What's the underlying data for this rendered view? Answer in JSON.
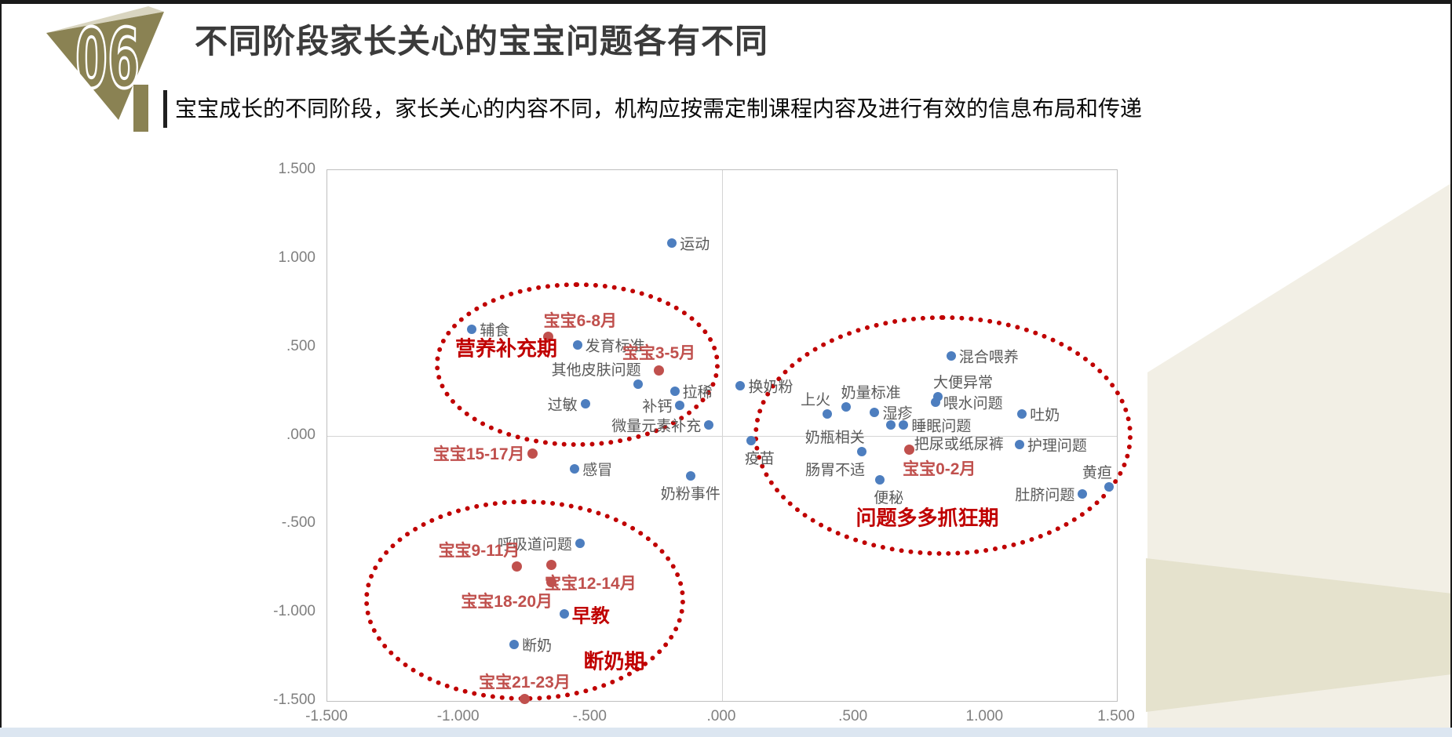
{
  "slide": {
    "badge_number": "06",
    "title": "不同阶段家长关心的宝宝问题各有不同",
    "subtitle": "宝宝成长的不同阶段，家长关心的内容不同，机构应按需定制课程内容及进行有效的信息布局和传递",
    "colors": {
      "accent_olive": "#8a8253",
      "accent_olive_light": "#d9d5c0",
      "corner_cream": "#f2efe5",
      "corner_band": "#e5e2cd",
      "bottom_strip_blue": "#dce6f1",
      "title_gray": "#3b3b3b",
      "topic_blue": "#4d7ebf",
      "stage_red": "#c0504d",
      "cluster_red": "#c00000",
      "label_gray": "#595959",
      "axis_gray": "#7f7f7f"
    }
  },
  "chart_data": {
    "type": "scatter",
    "title": "",
    "xlabel": "",
    "ylabel": "",
    "xlim": [
      -1.5,
      1.5
    ],
    "ylim": [
      -1.5,
      1.5
    ],
    "grid": "zero axis lines only",
    "legend": "none",
    "x_tick_labels": [
      "-1.500",
      "-1.000",
      "-.500",
      ".000",
      ".500",
      "1.000",
      "1.500"
    ],
    "y_tick_labels": [
      "1.500",
      "1.000",
      ".500",
      ".000",
      "-.500",
      "-1.000",
      "-1.500"
    ],
    "series": [
      {
        "name": "topics_blue",
        "color": "#4d7ebf",
        "points": [
          {
            "label": "运动",
            "x": -0.19,
            "y": 1.09,
            "side": "right"
          },
          {
            "label": "辅食",
            "x": -0.95,
            "y": 0.6,
            "side": "right"
          },
          {
            "label": "发育标准",
            "x": -0.55,
            "y": 0.51,
            "side": "right"
          },
          {
            "label": "其他皮肤问题",
            "x": -0.32,
            "y": 0.29,
            "side": "above-left"
          },
          {
            "label": "拉稀",
            "x": -0.18,
            "y": 0.25,
            "side": "right"
          },
          {
            "label": "过敏",
            "x": -0.52,
            "y": 0.18,
            "side": "left"
          },
          {
            "label": "补钙",
            "x": -0.16,
            "y": 0.17,
            "side": "left"
          },
          {
            "label": "微量元素补充",
            "x": -0.05,
            "y": 0.06,
            "side": "left"
          },
          {
            "label": "换奶粉",
            "x": 0.07,
            "y": 0.28,
            "side": "right"
          },
          {
            "label": "上火",
            "x": 0.4,
            "y": 0.12,
            "side": "above-left"
          },
          {
            "label": "奶量标准",
            "x": 0.47,
            "y": 0.16,
            "side": "above-right"
          },
          {
            "label": "湿疹",
            "x": 0.58,
            "y": 0.13,
            "side": "right"
          },
          {
            "label": "大便异常",
            "x": 0.82,
            "y": 0.22,
            "side": "above-right"
          },
          {
            "label": "喂水问题",
            "x": 0.81,
            "y": 0.19,
            "side": "right"
          },
          {
            "label": "混合喂养",
            "x": 0.87,
            "y": 0.45,
            "side": "right"
          },
          {
            "label": "吐奶",
            "x": 1.14,
            "y": 0.12,
            "side": "right"
          },
          {
            "label": "",
            "x": 0.64,
            "y": 0.06,
            "side": "right"
          },
          {
            "label": "睡眠问题",
            "x": 0.69,
            "y": 0.06,
            "side": "right"
          },
          {
            "label": "疫苗",
            "x": 0.11,
            "y": -0.03,
            "side": "below-right"
          },
          {
            "label": "奶瓶相关",
            "x": 0.53,
            "y": -0.09,
            "side": "above-left"
          },
          {
            "label": "护理问题",
            "x": 1.13,
            "y": -0.05,
            "side": "right"
          },
          {
            "label": "便秘",
            "x": 0.6,
            "y": -0.25,
            "side": "below-right"
          },
          {
            "label": "肚脐问题",
            "x": 1.37,
            "y": -0.33,
            "side": "left"
          },
          {
            "label": "黄疸",
            "x": 1.47,
            "y": -0.29,
            "side": "above-left"
          },
          {
            "label": "感冒",
            "x": -0.56,
            "y": -0.19,
            "side": "right"
          },
          {
            "label": "奶粉事件",
            "x": -0.12,
            "y": -0.23,
            "side": "below"
          },
          {
            "label": "呼吸道问题",
            "x": -0.54,
            "y": -0.61,
            "side": "left"
          },
          {
            "label": "早教",
            "x": -0.6,
            "y": -1.01,
            "side": "right",
            "emphasis": true
          },
          {
            "label": "断奶",
            "x": -0.79,
            "y": -1.18,
            "side": "right"
          }
        ]
      },
      {
        "name": "baby_age_stages_red",
        "color": "#c0504d",
        "points": [
          {
            "label": "宝宝6-8月",
            "x": -0.66,
            "y": 0.56,
            "side": "above-right"
          },
          {
            "label": "宝宝3-5月",
            "x": -0.24,
            "y": 0.37,
            "side": "above"
          },
          {
            "label": "宝宝0-2月",
            "x": 0.71,
            "y": -0.08,
            "side": "below-right"
          },
          {
            "label": "宝宝15-17月",
            "x": -0.72,
            "y": -0.1,
            "side": "left"
          },
          {
            "label": "宝宝9-11月",
            "x": -0.78,
            "y": -0.74,
            "side": "above-left"
          },
          {
            "label": "宝宝12-14月",
            "x": -0.65,
            "y": -0.73,
            "side": "below-right"
          },
          {
            "label": "宝宝18-20月",
            "x": -0.65,
            "y": -0.83,
            "side": "below-left"
          },
          {
            "label": "宝宝21-23月",
            "x": -0.75,
            "y": -1.49,
            "side": "above"
          }
        ]
      }
    ],
    "annotations": [
      {
        "label": "把尿或纸尿裤",
        "x": 0.9,
        "y": -0.04
      },
      {
        "label": "肠胃不适",
        "x": 0.43,
        "y": -0.19
      }
    ],
    "clusters": [
      {
        "label": "营养补充期",
        "label_x": -0.82,
        "label_y": 0.5,
        "ellipse": {
          "cx": -0.55,
          "cy": 0.4,
          "rx": 0.54,
          "ry": 0.465
        }
      },
      {
        "label": "问题多多抓狂期",
        "label_x": 0.78,
        "label_y": -0.46,
        "ellipse": {
          "cx": 0.84,
          "cy": 0.0,
          "rx": 0.72,
          "ry": 0.68
        }
      },
      {
        "label": "断奶期",
        "label_x": -0.41,
        "label_y": -1.27,
        "ellipse": {
          "cx": -0.75,
          "cy": -0.93,
          "rx": 0.61,
          "ry": 0.57
        }
      }
    ]
  }
}
